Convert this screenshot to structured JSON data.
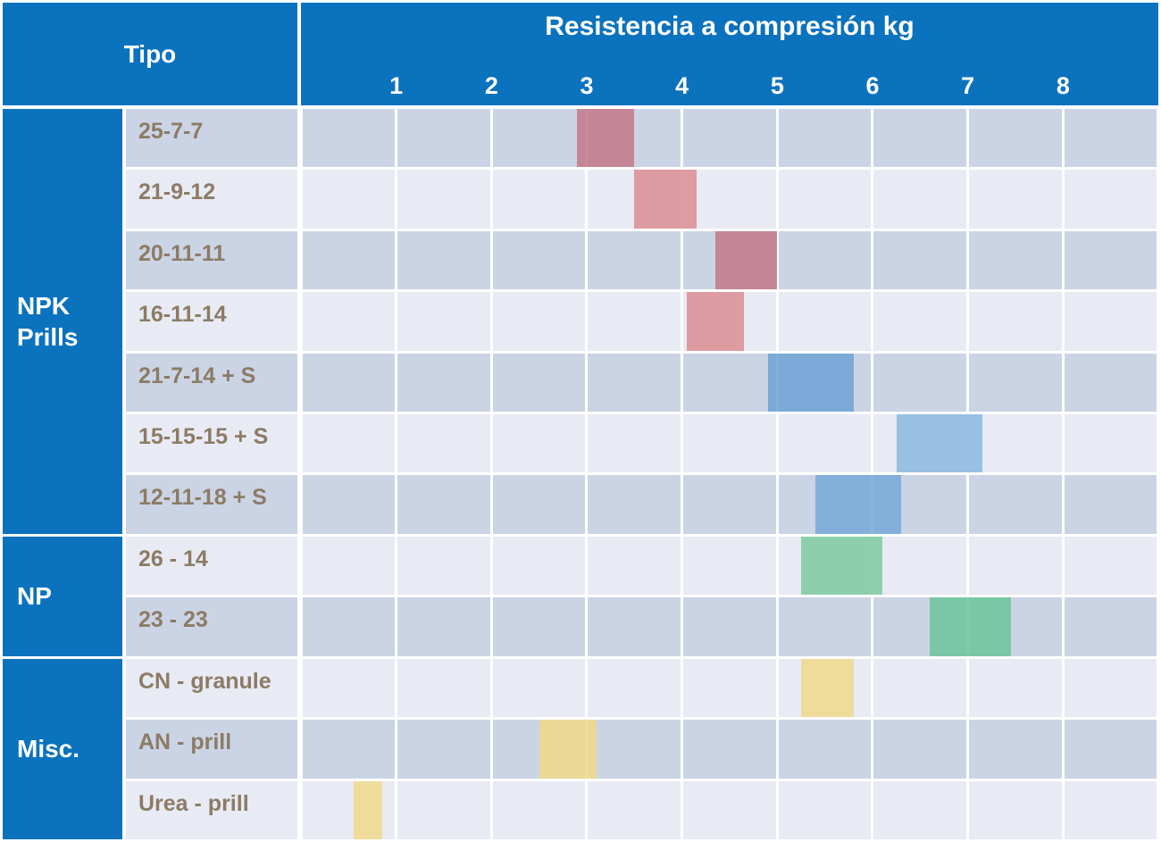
{
  "table": {
    "tipo_header": "Tipo",
    "title": "Resistencia a compresión kg",
    "axis": {
      "ticks": [
        "1",
        "2",
        "3",
        "4",
        "5",
        "6",
        "7",
        "8"
      ],
      "max": 9
    },
    "groups": [
      {
        "label": "NPK Prills",
        "row_span": 7
      },
      {
        "label": "NP",
        "row_span": 2
      },
      {
        "label": "Misc.",
        "row_span": 3
      }
    ],
    "rows": [
      {
        "label": "25-7-7",
        "from": 2.9,
        "to": 3.5,
        "bar_color": "#C37B8B"
      },
      {
        "label": "21-9-12",
        "from": 3.5,
        "to": 4.15,
        "bar_color": "#DB9096"
      },
      {
        "label": "20-11-11",
        "from": 4.35,
        "to": 5.0,
        "bar_color": "#C37B8B"
      },
      {
        "label": "16-11-14",
        "from": 4.05,
        "to": 4.65,
        "bar_color": "#DB9096"
      },
      {
        "label": "21-7-14 + S",
        "from": 4.9,
        "to": 5.8,
        "bar_color": "#6FA3D6"
      },
      {
        "label": "15-15-15 + S",
        "from": 6.25,
        "to": 7.15,
        "bar_color": "#8CB9DF"
      },
      {
        "label": "12-11-18 + S",
        "from": 5.4,
        "to": 6.3,
        "bar_color": "#79ABDA"
      },
      {
        "label": "26 - 14",
        "from": 5.25,
        "to": 6.1,
        "bar_color": "#80CBA3"
      },
      {
        "label": "23 - 23",
        "from": 6.6,
        "to": 7.45,
        "bar_color": "#70C49D"
      },
      {
        "label": "CN - granule",
        "from": 5.25,
        "to": 5.8,
        "bar_color": "#EFD88D"
      },
      {
        "label": "AN - prill",
        "from": 2.5,
        "to": 3.1,
        "bar_color": "#EFD88D"
      },
      {
        "label": "Urea - prill",
        "from": 0.55,
        "to": 0.85,
        "bar_color": "#EFD88D"
      }
    ]
  },
  "colors": {
    "header_blue": "#0B72BE",
    "row_dark_bg": "#CBD4E4",
    "row_light_bg": "#E8EBF3",
    "label_text": "#8C7B66",
    "gridline": "#FFFFFF"
  },
  "chart_data": {
    "type": "bar",
    "subtype": "horizontal-range-bars",
    "title": "Resistencia a compresión kg",
    "xlabel": "Resistencia a compresión kg",
    "ylabel": "Tipo",
    "xlim": [
      0,
      9
    ],
    "xticks": [
      1,
      2,
      3,
      4,
      5,
      6,
      7,
      8
    ],
    "grid": true,
    "categories": [
      "25-7-7",
      "21-9-12",
      "20-11-11",
      "16-11-14",
      "21-7-14 + S",
      "15-15-15 + S",
      "12-11-18 + S",
      "26 - 14",
      "23 - 23",
      "CN - granule",
      "AN - prill",
      "Urea - prill"
    ],
    "category_groups": [
      {
        "name": "NPK Prills",
        "categories": [
          "25-7-7",
          "21-9-12",
          "20-11-11",
          "16-11-14",
          "21-7-14 + S",
          "15-15-15 + S",
          "12-11-18 + S"
        ]
      },
      {
        "name": "NP",
        "categories": [
          "26 - 14",
          "23 - 23"
        ]
      },
      {
        "name": "Misc.",
        "categories": [
          "CN - granule",
          "AN - prill",
          "Urea - prill"
        ]
      }
    ],
    "series": [
      {
        "name": "25-7-7",
        "group": "NPK Prills",
        "range_kg": [
          2.9,
          3.5
        ]
      },
      {
        "name": "21-9-12",
        "group": "NPK Prills",
        "range_kg": [
          3.5,
          4.15
        ]
      },
      {
        "name": "20-11-11",
        "group": "NPK Prills",
        "range_kg": [
          4.35,
          5.0
        ]
      },
      {
        "name": "16-11-14",
        "group": "NPK Prills",
        "range_kg": [
          4.05,
          4.65
        ]
      },
      {
        "name": "21-7-14 + S",
        "group": "NPK Prills",
        "range_kg": [
          4.9,
          5.8
        ]
      },
      {
        "name": "15-15-15 + S",
        "group": "NPK Prills",
        "range_kg": [
          6.25,
          7.15
        ]
      },
      {
        "name": "12-11-18 + S",
        "group": "NPK Prills",
        "range_kg": [
          5.4,
          6.3
        ]
      },
      {
        "name": "26 - 14",
        "group": "NP",
        "range_kg": [
          5.25,
          6.1
        ]
      },
      {
        "name": "23 - 23",
        "group": "NP",
        "range_kg": [
          6.6,
          7.45
        ]
      },
      {
        "name": "CN - granule",
        "group": "Misc.",
        "range_kg": [
          5.25,
          5.8
        ]
      },
      {
        "name": "AN - prill",
        "group": "Misc.",
        "range_kg": [
          2.5,
          3.1
        ]
      },
      {
        "name": "Urea - prill",
        "group": "Misc.",
        "range_kg": [
          0.55,
          0.85
        ]
      }
    ]
  }
}
